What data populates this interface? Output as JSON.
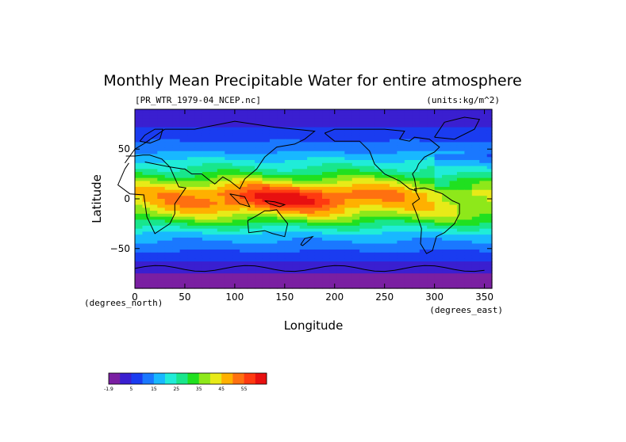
{
  "chart_data": {
    "type": "heatmap",
    "title": "Monthly Mean Precipitable Water for entire atmosphere",
    "file_label": "[PR_WTR_1979-04_NCEP.nc]",
    "units_label": "(units:kg/m^2)",
    "xlabel": "Longitude",
    "ylabel": "Latitude",
    "x_unit_label": "(degrees_east)",
    "y_unit_label": "(degrees_north)",
    "xlim": [
      0,
      357.5
    ],
    "ylim": [
      -90,
      90
    ],
    "x_ticks": [
      0,
      50,
      100,
      150,
      200,
      250,
      300,
      350
    ],
    "y_ticks": [
      -50,
      0,
      50
    ],
    "y_tick_labels": [
      "−50",
      "0",
      "50"
    ],
    "colorbar": {
      "tick_labels": [
        "-1.9",
        "5",
        "15",
        "25",
        "35",
        "45",
        "55"
      ],
      "colors": [
        "#7a1fa2",
        "#3a1fd0",
        "#1a3cf0",
        "#1a78ff",
        "#18b8ff",
        "#20ecd8",
        "#18e68c",
        "#20e020",
        "#8ee81a",
        "#e8ea18",
        "#ffb000",
        "#ff7010",
        "#ff3a10",
        "#e81010"
      ]
    },
    "field": {
      "lat": [
        85,
        75,
        65,
        55,
        45,
        35,
        25,
        15,
        5,
        -5,
        -15,
        -25,
        -35,
        -45,
        -55,
        -65,
        -75,
        -85
      ],
      "zonal_mean": [
        3,
        6,
        8,
        12,
        16,
        22,
        28,
        38,
        46,
        45,
        38,
        28,
        19,
        14,
        10,
        6,
        2,
        0
      ]
    }
  }
}
